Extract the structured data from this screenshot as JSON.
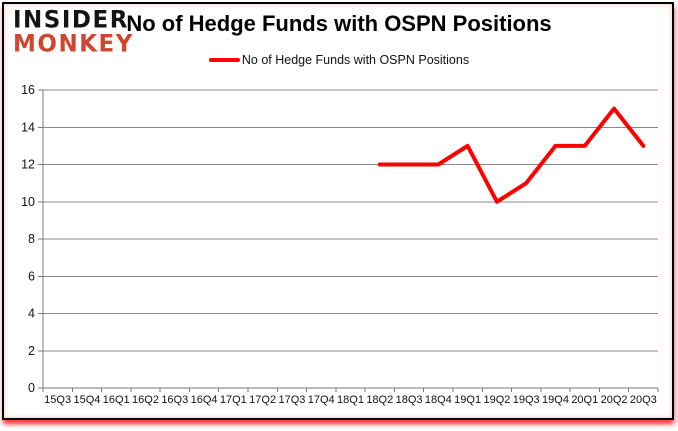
{
  "logo": {
    "line1": "INSIDER",
    "line2": "MONKEY"
  },
  "header": {
    "title": "No of Hedge Funds with OSPN Positions"
  },
  "legend": {
    "label": "No of Hedge Funds with OSPN Positions",
    "line_color": "#ff0000"
  },
  "colors": {
    "series_line": "#ff0000",
    "grid": "#8a8a8a",
    "axis": "#7a7a7a",
    "text": "#111111",
    "frame_border": "#000000",
    "shadow": "#ff0000",
    "logo_monkey": "#d0452f",
    "logo_insider": "#141414"
  },
  "chart_data": {
    "type": "line",
    "title": "No of Hedge Funds with OSPN Positions",
    "xlabel": "",
    "ylabel": "",
    "ylim": [
      0,
      16
    ],
    "ytick_step": 2,
    "grid": true,
    "legend_position": "top",
    "categories": [
      "15Q3",
      "15Q4",
      "16Q1",
      "16Q2",
      "16Q3",
      "16Q4",
      "17Q1",
      "17Q2",
      "17Q3",
      "17Q4",
      "18Q1",
      "18Q2",
      "18Q3",
      "18Q4",
      "19Q1",
      "19Q2",
      "19Q3",
      "19Q4",
      "20Q1",
      "20Q2",
      "20Q3"
    ],
    "series": [
      {
        "name": "No of Hedge Funds with OSPN Positions",
        "color": "#ff0000",
        "values": [
          null,
          null,
          null,
          null,
          null,
          null,
          null,
          null,
          null,
          null,
          null,
          12,
          12,
          12,
          13,
          10,
          11,
          13,
          13,
          15,
          13
        ]
      }
    ]
  }
}
